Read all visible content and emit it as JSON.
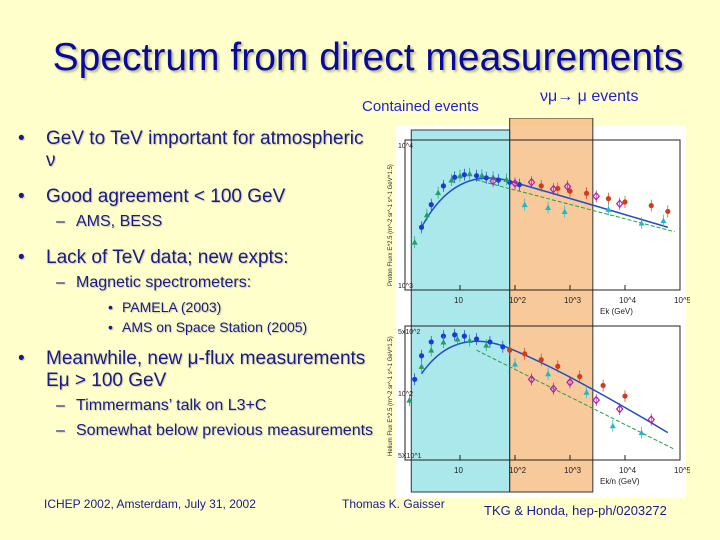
{
  "slide": {
    "title": "Spectrum from direct measurements",
    "label_contained": "Contained events",
    "label_mu_events": "νμ→ μ events",
    "bullets": [
      {
        "level": 1,
        "text": "GeV to TeV important for atmospheric ν"
      },
      {
        "level": 1,
        "text": "Good agreement < 100 GeV"
      },
      {
        "level": 2,
        "text": "AMS, BESS"
      },
      {
        "level": 1,
        "text": "Lack of TeV data; new expts:"
      },
      {
        "level": 2,
        "text": "Magnetic spectrometers:"
      },
      {
        "level": 3,
        "text": "PAMELA (2003)"
      },
      {
        "level": 3,
        "text": "AMS on Space Station (2005)"
      },
      {
        "level": 1,
        "text": "Meanwhile, new μ-flux measurements Eμ > 100 GeV"
      },
      {
        "level": 2,
        "text": "Timmermans’ talk on L3+C"
      },
      {
        "level": 2,
        "text": "Somewhat below previous measurements"
      }
    ],
    "footer_left": "ICHEP 2002, Amsterdam, July 31, 2002",
    "footer_center": "Thomas K. Gaisser",
    "footer_right": "TKG & Honda, hep-ph/0203272"
  },
  "colors": {
    "title": "#0a0a9a",
    "text": "#1a1a8a",
    "background": "#ffffcc",
    "highlight_cyan": "#8fe0e6",
    "highlight_orange": "#f5b77a"
  },
  "chart_data": [
    {
      "type": "scatter",
      "title": "",
      "ylabel": "Proton Fluxx E^2.5 (m^-2 sr^-1 s^-1 GeV^1.5)",
      "xlabel": "Ek (GeV)",
      "xscale": "log",
      "yscale": "log",
      "xlim": [
        1,
        100000
      ],
      "ylim": [
        1000,
        20000
      ],
      "x_tick_labels": [
        "10",
        "10^2",
        "10^3",
        "10^4",
        "10^5"
      ],
      "y_tick_labels": [
        "10^4",
        "10^3"
      ],
      "series": [
        {
          "values": [
            [
              2,
              3500
            ],
            [
              3,
              5500
            ],
            [
              5,
              8000
            ],
            [
              8,
              9500
            ],
            [
              12,
              10000
            ],
            [
              20,
              9800
            ],
            [
              30,
              9400
            ],
            [
              50,
              9000
            ],
            [
              80,
              8600
            ],
            [
              120,
              8200
            ]
          ]
        },
        {
          "values": [
            [
              1.5,
              2600
            ],
            [
              2.5,
              4500
            ],
            [
              4,
              7000
            ],
            [
              7,
              9000
            ],
            [
              10,
              9800
            ],
            [
              15,
              10200
            ],
            [
              25,
              9900
            ],
            [
              40,
              9500
            ],
            [
              70,
              9100
            ]
          ]
        },
        {
          "values": [
            [
              300,
              8000
            ],
            [
              600,
              7600
            ],
            [
              1000,
              7200
            ],
            [
              2000,
              6900
            ],
            [
              5000,
              6200
            ],
            [
              10000,
              5800
            ],
            [
              30000,
              5400
            ],
            [
              60000,
              4800
            ]
          ]
        },
        {
          "values": [
            [
              40,
              8800
            ],
            [
              100,
              8400
            ],
            [
              200,
              8600
            ],
            [
              500,
              7500
            ],
            [
              900,
              7900
            ],
            [
              3000,
              6500
            ],
            [
              8000,
              5600
            ]
          ]
        },
        {
          "values": [
            [
              150,
              5500
            ],
            [
              400,
              5200
            ],
            [
              800,
              4800
            ],
            [
              5000,
              5000
            ],
            [
              20000,
              3800
            ],
            [
              50000,
              4000
            ]
          ]
        }
      ]
    },
    {
      "type": "scatter",
      "title": "",
      "ylabel": "Helium Flux E^2.5 (m^-2 sr^-1 s^-1 GeV^1.5)",
      "xlabel": "Ek/n (GeV)",
      "xscale": "log",
      "yscale": "log",
      "xlim": [
        1,
        100000
      ],
      "ylim": [
        50,
        500
      ],
      "x_tick_labels": [
        "10",
        "10^2",
        "10^3",
        "10^4",
        "10^5"
      ],
      "y_tick_labels": [
        "5x10^2",
        "10^2",
        "5X10^1"
      ],
      "series": [
        {
          "values": [
            [
              1.5,
              200
            ],
            [
              2,
              300
            ],
            [
              3,
              380
            ],
            [
              5,
              420
            ],
            [
              8,
              430
            ],
            [
              12,
              420
            ],
            [
              20,
              400
            ],
            [
              35,
              380
            ],
            [
              60,
              350
            ]
          ]
        },
        {
          "values": [
            [
              1.2,
              140
            ],
            [
              2,
              250
            ],
            [
              3,
              330
            ],
            [
              5,
              380
            ],
            [
              9,
              400
            ],
            [
              15,
              390
            ],
            [
              30,
              360
            ]
          ]
        },
        {
          "values": [
            [
              80,
              330
            ],
            [
              150,
              310
            ],
            [
              300,
              280
            ],
            [
              600,
              250
            ],
            [
              1500,
              210
            ],
            [
              4000,
              180
            ],
            [
              10000,
              150
            ]
          ]
        },
        {
          "values": [
            [
              200,
              200
            ],
            [
              500,
              170
            ],
            [
              1000,
              190
            ],
            [
              3000,
              140
            ],
            [
              8000,
              120
            ],
            [
              30000,
              100
            ]
          ]
        },
        {
          "values": [
            [
              100,
              260
            ],
            [
              400,
              220
            ],
            [
              2000,
              160
            ],
            [
              6000,
              90
            ],
            [
              20000,
              80
            ]
          ]
        }
      ]
    }
  ]
}
